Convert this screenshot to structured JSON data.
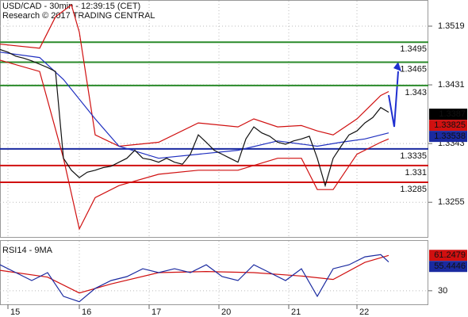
{
  "chart_data": [
    {
      "type": "line",
      "title": "USD/CAD - 30min - 12:39:15 (CET)",
      "subtitle": "Research © 2017 TRADING CENTRAL",
      "xlim": [
        0,
        54
      ],
      "ylim": [
        1.3203,
        1.3557
      ],
      "yticks": [
        1.3255,
        1.3343,
        1.3431,
        1.3519
      ],
      "grid": true,
      "series": [
        {
          "color": "#d01010",
          "x": [
            0,
            5,
            7,
            9,
            10,
            12,
            15,
            20,
            25,
            30,
            32,
            35,
            38,
            40,
            42,
            45,
            48,
            49
          ],
          "values": [
            1.3492,
            1.3486,
            1.3533,
            1.3551,
            1.351,
            1.3356,
            1.3339,
            1.3345,
            1.3374,
            1.3368,
            1.338,
            1.3368,
            1.337,
            1.3362,
            1.3356,
            1.338,
            1.3415,
            1.3421
          ]
        },
        {
          "color": "#d01010",
          "x": [
            0,
            5,
            8,
            10,
            12,
            15,
            20,
            25,
            30,
            35,
            38,
            40,
            42,
            45,
            48,
            49
          ],
          "values": [
            1.3468,
            1.3451,
            1.3321,
            1.3215,
            1.3262,
            1.328,
            1.3297,
            1.3303,
            1.3303,
            1.3321,
            1.3321,
            1.3274,
            1.3274,
            1.3327,
            1.3345,
            1.335
          ]
        },
        {
          "color": "#2030c0",
          "x": [
            0,
            5,
            8,
            12,
            15,
            20,
            25,
            30,
            35,
            40,
            43,
            46,
            49
          ],
          "values": [
            1.348,
            1.3472,
            1.3439,
            1.338,
            1.3339,
            1.3321,
            1.3327,
            1.3333,
            1.3347,
            1.3339,
            1.3345,
            1.335,
            1.3359
          ]
        },
        {
          "color": "#111111",
          "x": [
            0,
            1,
            2,
            3,
            4,
            5,
            6,
            7,
            8,
            9,
            10,
            11,
            12,
            13,
            14,
            15,
            16,
            17,
            18,
            19,
            20,
            21,
            22,
            23,
            24,
            25,
            26,
            27,
            28,
            29,
            30,
            31,
            32,
            33,
            34,
            35,
            36,
            37,
            38,
            39,
            40,
            41,
            42,
            43,
            44,
            45,
            46,
            47,
            48,
            49
          ],
          "values": [
            1.3484,
            1.348,
            1.3474,
            1.3471,
            1.3467,
            1.3462,
            1.3457,
            1.3451,
            1.3321,
            1.3303,
            1.3292,
            1.33,
            1.3303,
            1.3307,
            1.3309,
            1.3315,
            1.3321,
            1.3333,
            1.3321,
            1.3319,
            1.3315,
            1.3321,
            1.3315,
            1.3312,
            1.3327,
            1.3356,
            1.3345,
            1.3333,
            1.3327,
            1.3321,
            1.3315,
            1.335,
            1.3368,
            1.3359,
            1.3354,
            1.3345,
            1.3342,
            1.3347,
            1.335,
            1.3354,
            1.3321,
            1.328,
            1.3321,
            1.3339,
            1.3356,
            1.3362,
            1.3374,
            1.3382,
            1.3397,
            1.339
          ]
        }
      ],
      "levels": [
        {
          "value": 1.3495,
          "color": "#2a8a2a"
        },
        {
          "value": 1.3465,
          "color": "#2a8a2a"
        },
        {
          "value": 1.343,
          "color": "#2a8a2a"
        },
        {
          "value": 1.3335,
          "color": "#1a2aa0"
        },
        {
          "value": 1.331,
          "color": "#d01010"
        },
        {
          "value": 1.3285,
          "color": "#d01010"
        }
      ],
      "tags": [
        {
          "value": 1.3387,
          "color": "#000000"
        },
        {
          "value": 1.33825,
          "color": "#d01010"
        },
        {
          "value": 1.33538,
          "color": "#1a2aa0"
        }
      ]
    },
    {
      "type": "line",
      "title": "RSI14 - 9MA",
      "xlim": [
        0,
        54
      ],
      "ylim": [
        18,
        74
      ],
      "yticks": [
        30
      ],
      "grid": true,
      "xticks": [
        {
          "value": 1,
          "label": "15"
        },
        {
          "value": 10,
          "label": "16"
        },
        {
          "value": 18.8,
          "label": "17"
        },
        {
          "value": 27.6,
          "label": "20"
        },
        {
          "value": 36.4,
          "label": "21"
        },
        {
          "value": 45,
          "label": "22"
        }
      ],
      "series": [
        {
          "color": "#d01010",
          "x": [
            0,
            6,
            10,
            14,
            20,
            26,
            32,
            38,
            42,
            46,
            49
          ],
          "values": [
            48,
            42,
            28,
            36,
            46,
            47,
            46,
            43,
            40,
            55,
            61.2
          ]
        },
        {
          "color": "#1a2aa0",
          "x": [
            0,
            2,
            4,
            6,
            8,
            10,
            12,
            14,
            16,
            18,
            20,
            22,
            24,
            26,
            28,
            30,
            32,
            34,
            36,
            38,
            40,
            42,
            44,
            46,
            48,
            49
          ],
          "values": [
            52.9,
            46,
            39,
            46,
            25.1,
            20.3,
            32.1,
            39,
            42.5,
            49.4,
            46,
            49.4,
            46,
            52.9,
            42.5,
            39,
            52.9,
            46,
            39,
            49.4,
            25.1,
            49.4,
            52.9,
            59.9,
            61.9,
            55.4
          ]
        }
      ],
      "tags": [
        {
          "value": 61.2479,
          "color": "#d01010"
        },
        {
          "value": 55.4446,
          "color": "#1a2aa0"
        }
      ]
    }
  ]
}
